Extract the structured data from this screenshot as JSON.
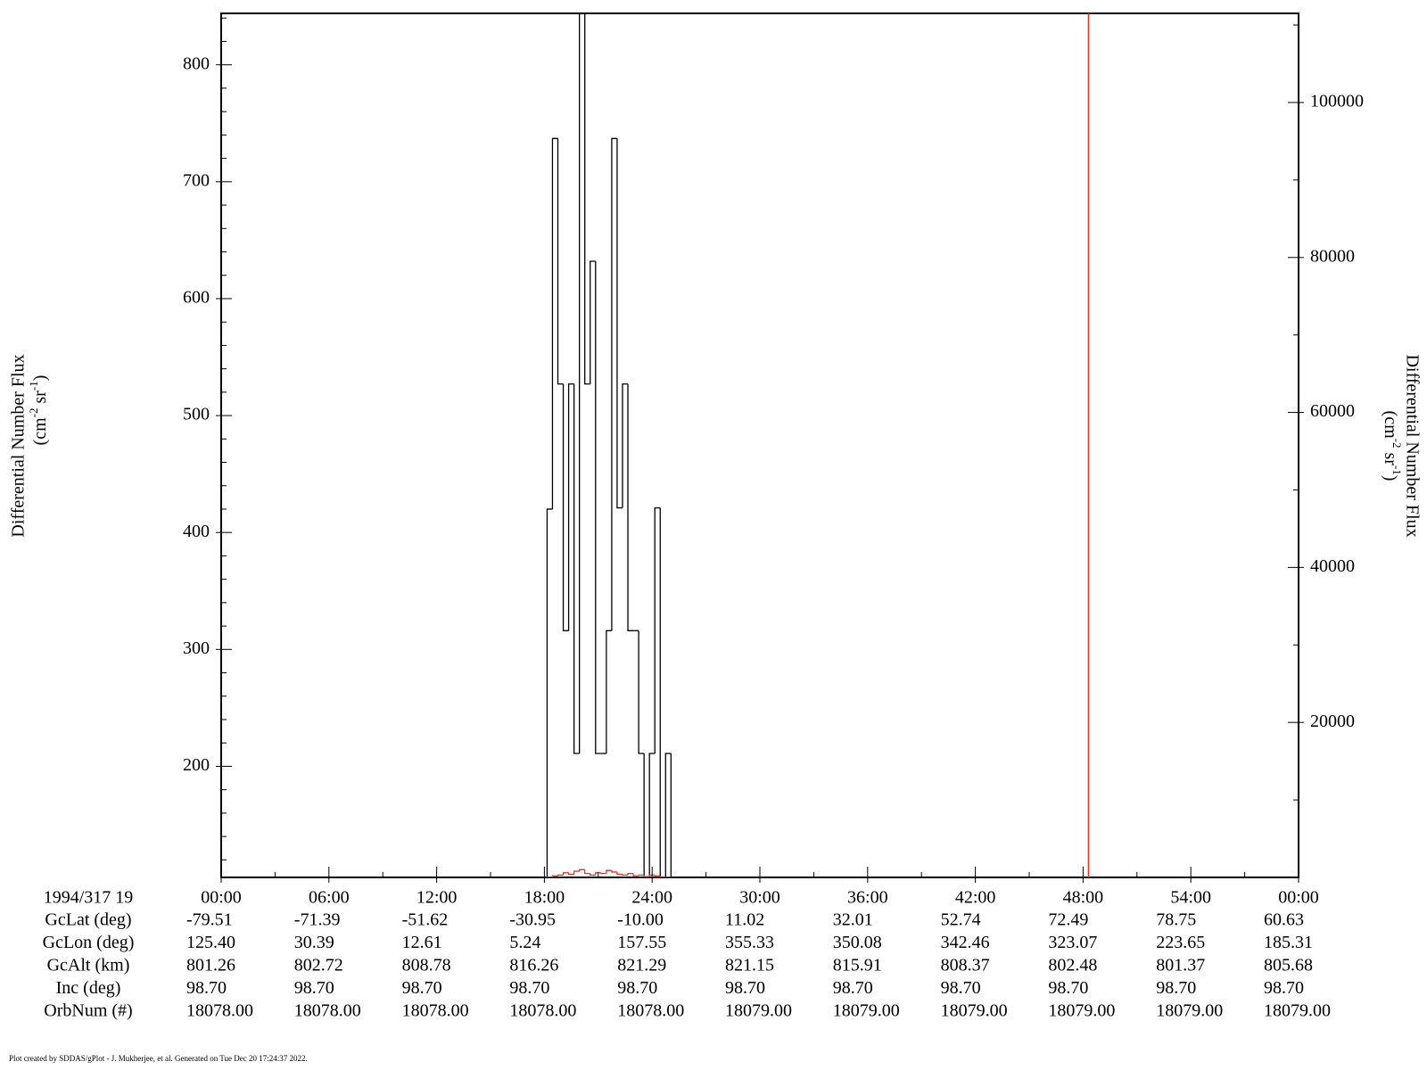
{
  "chart_data": {
    "type": "histogram",
    "y_label": "Differential Number Flux",
    "y_unit": [
      "(cm",
      "-2",
      "sr",
      "-1",
      ")"
    ],
    "y2_label": "Differential Number Flux",
    "y2_unit": [
      "(cm",
      "-2",
      "sr",
      "-1",
      ")"
    ],
    "xlim": [
      0,
      60
    ],
    "xticks": [
      {
        "value": 0,
        "label": "00:00"
      },
      {
        "value": 6,
        "label": "06:00"
      },
      {
        "value": 12,
        "label": "12:00"
      },
      {
        "value": 18,
        "label": "18:00"
      },
      {
        "value": 24,
        "label": "24:00"
      },
      {
        "value": 30,
        "label": "30:00"
      },
      {
        "value": 36,
        "label": "36:00"
      },
      {
        "value": 42,
        "label": "42:00"
      },
      {
        "value": 48,
        "label": "48:00"
      },
      {
        "value": 54,
        "label": "54:00"
      },
      {
        "value": 60,
        "label": "00:00"
      }
    ],
    "xminorticks": [
      3,
      9,
      15,
      21,
      27,
      33,
      39,
      45,
      51,
      57
    ],
    "ylim": [
      105,
      844
    ],
    "yticks": [
      200,
      300,
      400,
      500,
      600,
      700,
      800
    ],
    "yminorticks": [
      120,
      140,
      160,
      180,
      220,
      240,
      260,
      280,
      320,
      340,
      360,
      380,
      420,
      440,
      460,
      480,
      520,
      540,
      560,
      580,
      620,
      640,
      660,
      680,
      720,
      740,
      760,
      780,
      820,
      840
    ],
    "y2lim": [
      0,
      111500
    ],
    "y2ticks": [
      20000,
      40000,
      60000,
      80000,
      100000
    ],
    "y2minorticks": [
      10000,
      30000,
      50000,
      70000,
      90000,
      110000
    ],
    "bins": [
      18.15,
      18.45,
      18.75,
      19.05,
      19.35,
      19.65,
      19.95,
      20.25,
      20.55,
      20.85,
      21.15,
      21.45,
      21.75,
      22.05,
      22.35,
      22.65,
      22.95,
      23.25,
      23.55,
      23.85,
      24.15,
      24.45,
      24.75,
      25.05
    ],
    "series": [
      {
        "color": "#000000",
        "values": [
          420,
          737,
          527,
          316,
          527,
          211,
          844,
          527,
          632,
          211,
          211,
          316,
          737,
          421,
          527,
          316,
          316,
          211,
          0,
          211,
          421,
          0,
          211
        ]
      },
      {
        "color": "#e8302f",
        "axis": "y2",
        "values": [
          0,
          200,
          300,
          600,
          400,
          800,
          1000,
          500,
          300,
          600,
          500,
          900,
          700,
          400,
          300,
          500,
          200,
          300,
          100,
          300,
          200,
          0,
          0
        ]
      }
    ],
    "vline": {
      "x": 48.3,
      "color": "#e8302f"
    },
    "time_label": "1994/317 19",
    "ephemeris": [
      {
        "label": "GcLat (deg)",
        "values": [
          "-79.51",
          "-71.39",
          "-51.62",
          "-30.95",
          "-10.00",
          "11.02",
          "32.01",
          "52.74",
          "72.49",
          "78.75",
          "60.63"
        ]
      },
      {
        "label": "GcLon (deg)",
        "values": [
          "125.40",
          "30.39",
          "12.61",
          "5.24",
          "157.55",
          "355.33",
          "350.08",
          "342.46",
          "323.07",
          "223.65",
          "185.31"
        ]
      },
      {
        "label": "GcAlt (km)",
        "values": [
          "801.26",
          "802.72",
          "808.78",
          "816.26",
          "821.29",
          "821.15",
          "815.91",
          "808.37",
          "802.48",
          "801.37",
          "805.68"
        ]
      },
      {
        "label": "Inc (deg)",
        "values": [
          "98.70",
          "98.70",
          "98.70",
          "98.70",
          "98.70",
          "98.70",
          "98.70",
          "98.70",
          "98.70",
          "98.70",
          "98.70"
        ]
      },
      {
        "label": "OrbNum (#)",
        "values": [
          "18078.00",
          "18078.00",
          "18078.00",
          "18078.00",
          "18078.00",
          "18079.00",
          "18079.00",
          "18079.00",
          "18079.00",
          "18079.00",
          "18079.00"
        ]
      }
    ],
    "footer": "Plot created by SDDAS/gPlot - J. Mukherjee, et al.  Generated on Tue Dec 20 17:24:37 2022."
  }
}
